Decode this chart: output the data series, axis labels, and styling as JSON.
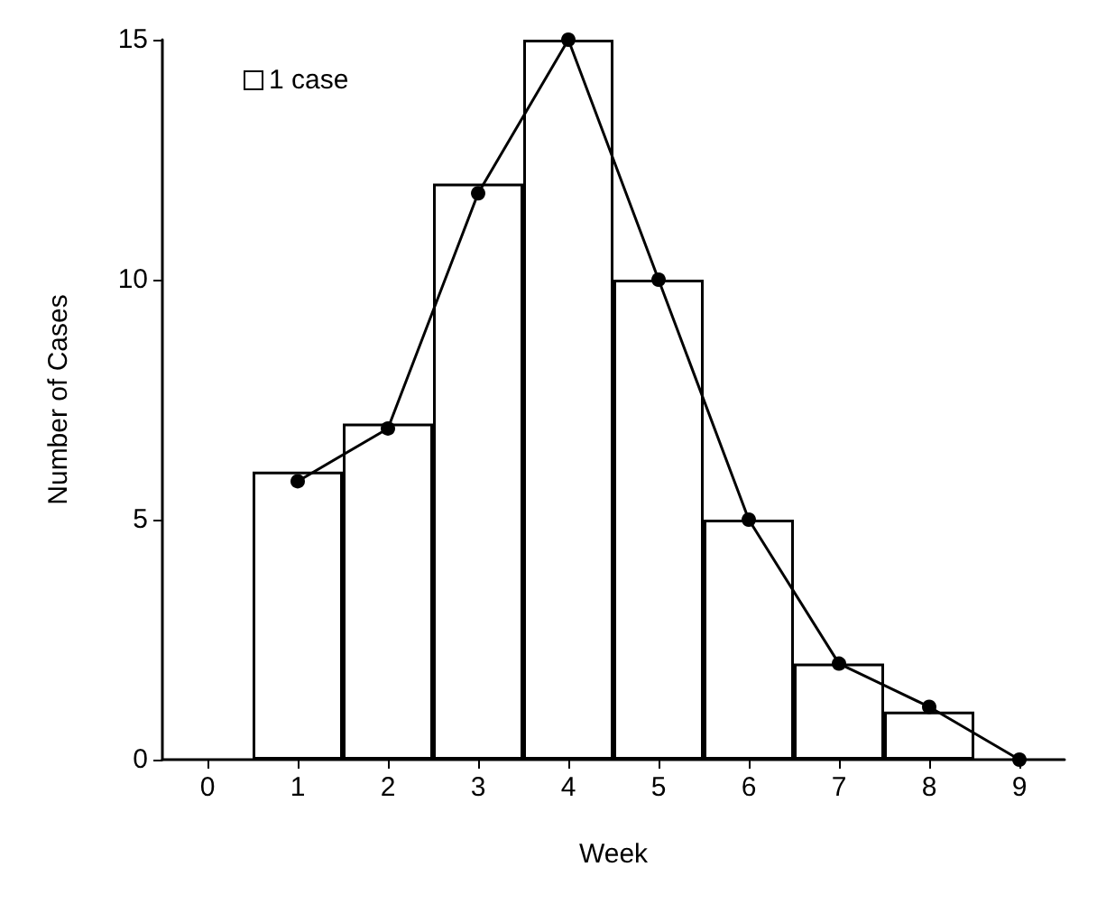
{
  "chart_data": {
    "type": "bar",
    "xlabel": "Week",
    "ylabel": "Number of Cases",
    "annotations": [
      "1 case"
    ],
    "categories": [
      "0",
      "1",
      "2",
      "3",
      "4",
      "5",
      "6",
      "7",
      "8",
      "9"
    ],
    "series": [
      {
        "color": "#ffffff",
        "values": [
          null,
          6,
          7,
          12,
          15,
          10,
          5,
          2,
          1,
          null
        ]
      },
      {
        "type": "line",
        "color": "#000000",
        "marker": "circle",
        "values": [
          null,
          5.8,
          6.9,
          11.8,
          15,
          10,
          5,
          2,
          1.1,
          0
        ]
      }
    ],
    "ylim": [
      0,
      15
    ],
    "yticks": [
      0,
      5,
      10,
      15
    ],
    "grid": false
  }
}
